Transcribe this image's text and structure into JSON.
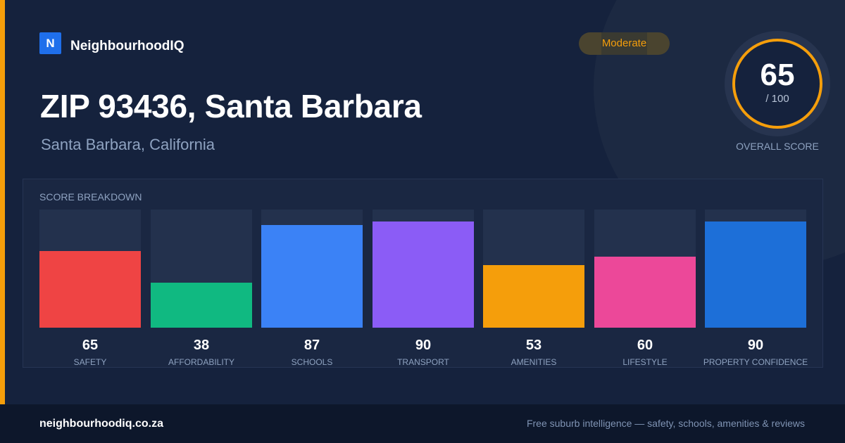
{
  "brand": {
    "logo_letter": "N",
    "name": "NeighbourhoodIQ"
  },
  "title": "ZIP 93436, Santa Barbara",
  "subtitle": "Santa Barbara, California",
  "badge": "Moderate",
  "overall": {
    "value": 65,
    "value_text": "65",
    "max_text": "/ 100",
    "label": "OVERALL SCORE"
  },
  "breakdown": {
    "title": "SCORE BREAKDOWN",
    "items": [
      {
        "label": "SAFETY",
        "value": 65,
        "value_text": "65",
        "color": "#ef4444"
      },
      {
        "label": "AFFORDABILITY",
        "value": 38,
        "value_text": "38",
        "color": "#10b981"
      },
      {
        "label": "SCHOOLS",
        "value": 87,
        "value_text": "87",
        "color": "#3b82f6"
      },
      {
        "label": "TRANSPORT",
        "value": 90,
        "value_text": "90",
        "color": "#8b5cf6"
      },
      {
        "label": "AMENITIES",
        "value": 53,
        "value_text": "53",
        "color": "#f59e0b"
      },
      {
        "label": "LIFESTYLE",
        "value": 60,
        "value_text": "60",
        "color": "#ec4899"
      },
      {
        "label": "PROPERTY CONFIDENCE",
        "value": 90,
        "value_text": "90",
        "color": "#1d6fd8"
      }
    ]
  },
  "colors": {
    "accent": "#f59e0b",
    "background": "#15223d",
    "footer": "#0d172b"
  },
  "footer": {
    "site": "neighbourhoodiq.co.za",
    "tagline": "Free suburb intelligence — safety, schools, amenities & reviews"
  }
}
